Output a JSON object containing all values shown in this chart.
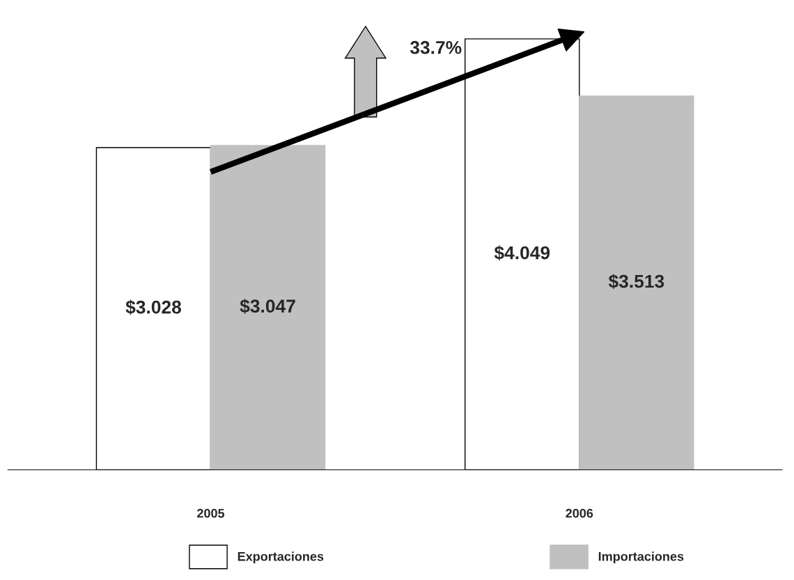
{
  "chart_data": {
    "type": "bar",
    "categories": [
      "2005",
      "2006"
    ],
    "series": [
      {
        "name": "Exportaciones",
        "color": "#ffffff",
        "values": [
          3.028,
          4.049
        ],
        "value_labels": [
          "$3.028",
          "$4.049"
        ]
      },
      {
        "name": "Importaciones",
        "color": "#c0c0c0",
        "values": [
          3.047,
          3.513
        ],
        "value_labels": [
          "$3.047",
          "$3.513"
        ]
      },
      {
        "type": "line",
        "color": "#000000",
        "values": [
          2.8,
          4.1
        ]
      }
    ],
    "annotations": [
      "33.7%"
    ],
    "legend": "bottom",
    "grid": false
  }
}
